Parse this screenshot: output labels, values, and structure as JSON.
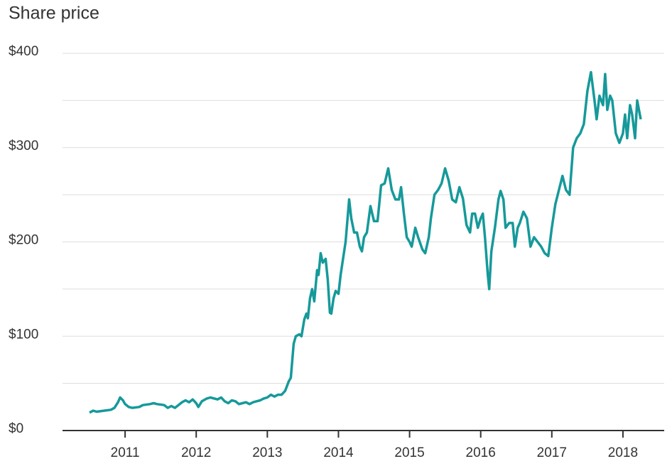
{
  "chart_data": {
    "type": "line",
    "title": "Share price",
    "x": [
      2010.5,
      2010.55,
      2010.6,
      2010.7,
      2010.8,
      2010.85,
      2010.9,
      2010.93,
      2010.97,
      2011.0,
      2011.05,
      2011.1,
      2011.2,
      2011.25,
      2011.35,
      2011.4,
      2011.45,
      2011.55,
      2011.6,
      2011.65,
      2011.7,
      2011.75,
      2011.8,
      2011.85,
      2011.9,
      2011.95,
      2012.0,
      2012.03,
      2012.08,
      2012.15,
      2012.2,
      2012.3,
      2012.35,
      2012.4,
      2012.45,
      2012.5,
      2012.55,
      2012.6,
      2012.65,
      2012.7,
      2012.75,
      2012.8,
      2012.85,
      2012.9,
      2012.95,
      2013.0,
      2013.05,
      2013.1,
      2013.15,
      2013.2,
      2013.25,
      2013.3,
      2013.33,
      2013.37,
      2013.4,
      2013.45,
      2013.48,
      2013.52,
      2013.55,
      2013.57,
      2013.6,
      2013.63,
      2013.66,
      2013.7,
      2013.72,
      2013.75,
      2013.78,
      2013.82,
      2013.85,
      2013.88,
      2013.9,
      2013.93,
      2013.96,
      2014.0,
      2014.03,
      2014.06,
      2014.1,
      2014.15,
      2014.18,
      2014.22,
      2014.26,
      2014.3,
      2014.33,
      2014.36,
      2014.4,
      2014.45,
      2014.5,
      2014.55,
      2014.6,
      2014.65,
      2014.7,
      2014.75,
      2014.8,
      2014.85,
      2014.88,
      2014.92,
      2014.96,
      2015.0,
      2015.03,
      2015.08,
      2015.12,
      2015.18,
      2015.22,
      2015.27,
      2015.3,
      2015.35,
      2015.4,
      2015.45,
      2015.5,
      2015.55,
      2015.6,
      2015.65,
      2015.7,
      2015.75,
      2015.8,
      2015.85,
      2015.88,
      2015.92,
      2015.96,
      2016.0,
      2016.03,
      2016.06,
      2016.1,
      2016.12,
      2016.15,
      2016.2,
      2016.25,
      2016.28,
      2016.32,
      2016.35,
      2016.4,
      2016.45,
      2016.48,
      2016.52,
      2016.55,
      2016.6,
      2016.65,
      2016.7,
      2016.75,
      2016.8,
      2016.85,
      2016.9,
      2016.95,
      2017.0,
      2017.05,
      2017.1,
      2017.15,
      2017.2,
      2017.25,
      2017.3,
      2017.35,
      2017.4,
      2017.45,
      2017.5,
      2017.55,
      2017.6,
      2017.63,
      2017.67,
      2017.72,
      2017.75,
      2017.78,
      2017.82,
      2017.85,
      2017.9,
      2017.95,
      2018.0,
      2018.03,
      2018.06,
      2018.1,
      2018.13,
      2018.17,
      2018.2,
      2018.25
    ],
    "series": [
      {
        "color": "#16999a",
        "values": [
          19,
          21,
          20,
          21,
          22,
          24,
          30,
          35,
          32,
          28,
          25,
          24,
          25,
          27,
          28,
          29,
          28,
          27,
          24,
          26,
          24,
          27,
          30,
          32,
          30,
          33,
          29,
          25,
          31,
          34,
          35,
          33,
          35,
          31,
          29,
          32,
          31,
          28,
          29,
          30,
          28,
          30,
          31,
          32,
          34,
          35,
          38,
          36,
          38,
          38,
          42,
          52,
          56,
          92,
          100,
          102,
          100,
          118,
          124,
          119,
          140,
          150,
          137,
          170,
          165,
          188,
          178,
          182,
          160,
          125,
          124,
          140,
          148,
          145,
          165,
          180,
          200,
          245,
          225,
          210,
          210,
          195,
          190,
          205,
          210,
          238,
          222,
          222,
          260,
          262,
          278,
          255,
          245,
          245,
          258,
          230,
          205,
          200,
          195,
          215,
          205,
          192,
          188,
          205,
          225,
          250,
          255,
          262,
          278,
          265,
          245,
          242,
          258,
          246,
          218,
          210,
          230,
          230,
          215,
          225,
          230,
          205,
          165,
          150,
          190,
          215,
          245,
          254,
          245,
          215,
          220,
          220,
          195,
          215,
          220,
          232,
          225,
          195,
          205,
          200,
          195,
          188,
          185,
          215,
          240,
          255,
          270,
          255,
          250,
          300,
          310,
          315,
          325,
          360,
          380,
          350,
          330,
          355,
          345,
          378,
          340,
          355,
          350,
          315,
          305,
          315,
          335,
          310,
          345,
          335,
          310,
          350,
          330
        ]
      }
    ],
    "xlim": [
      2010.12,
      2018.58
    ],
    "xticks": [
      2011,
      2012,
      2013,
      2014,
      2015,
      2016,
      2017,
      2018
    ],
    "ylim": [
      0,
      400
    ],
    "yticks": [
      {
        "value": 0,
        "label": "$0"
      },
      {
        "value": 100,
        "label": "$100"
      },
      {
        "value": 200,
        "label": "$200"
      },
      {
        "value": 300,
        "label": "$300"
      },
      {
        "value": 400,
        "label": "$400"
      }
    ],
    "minor_yticks": [
      50,
      150,
      250,
      350
    ],
    "grid": true
  }
}
